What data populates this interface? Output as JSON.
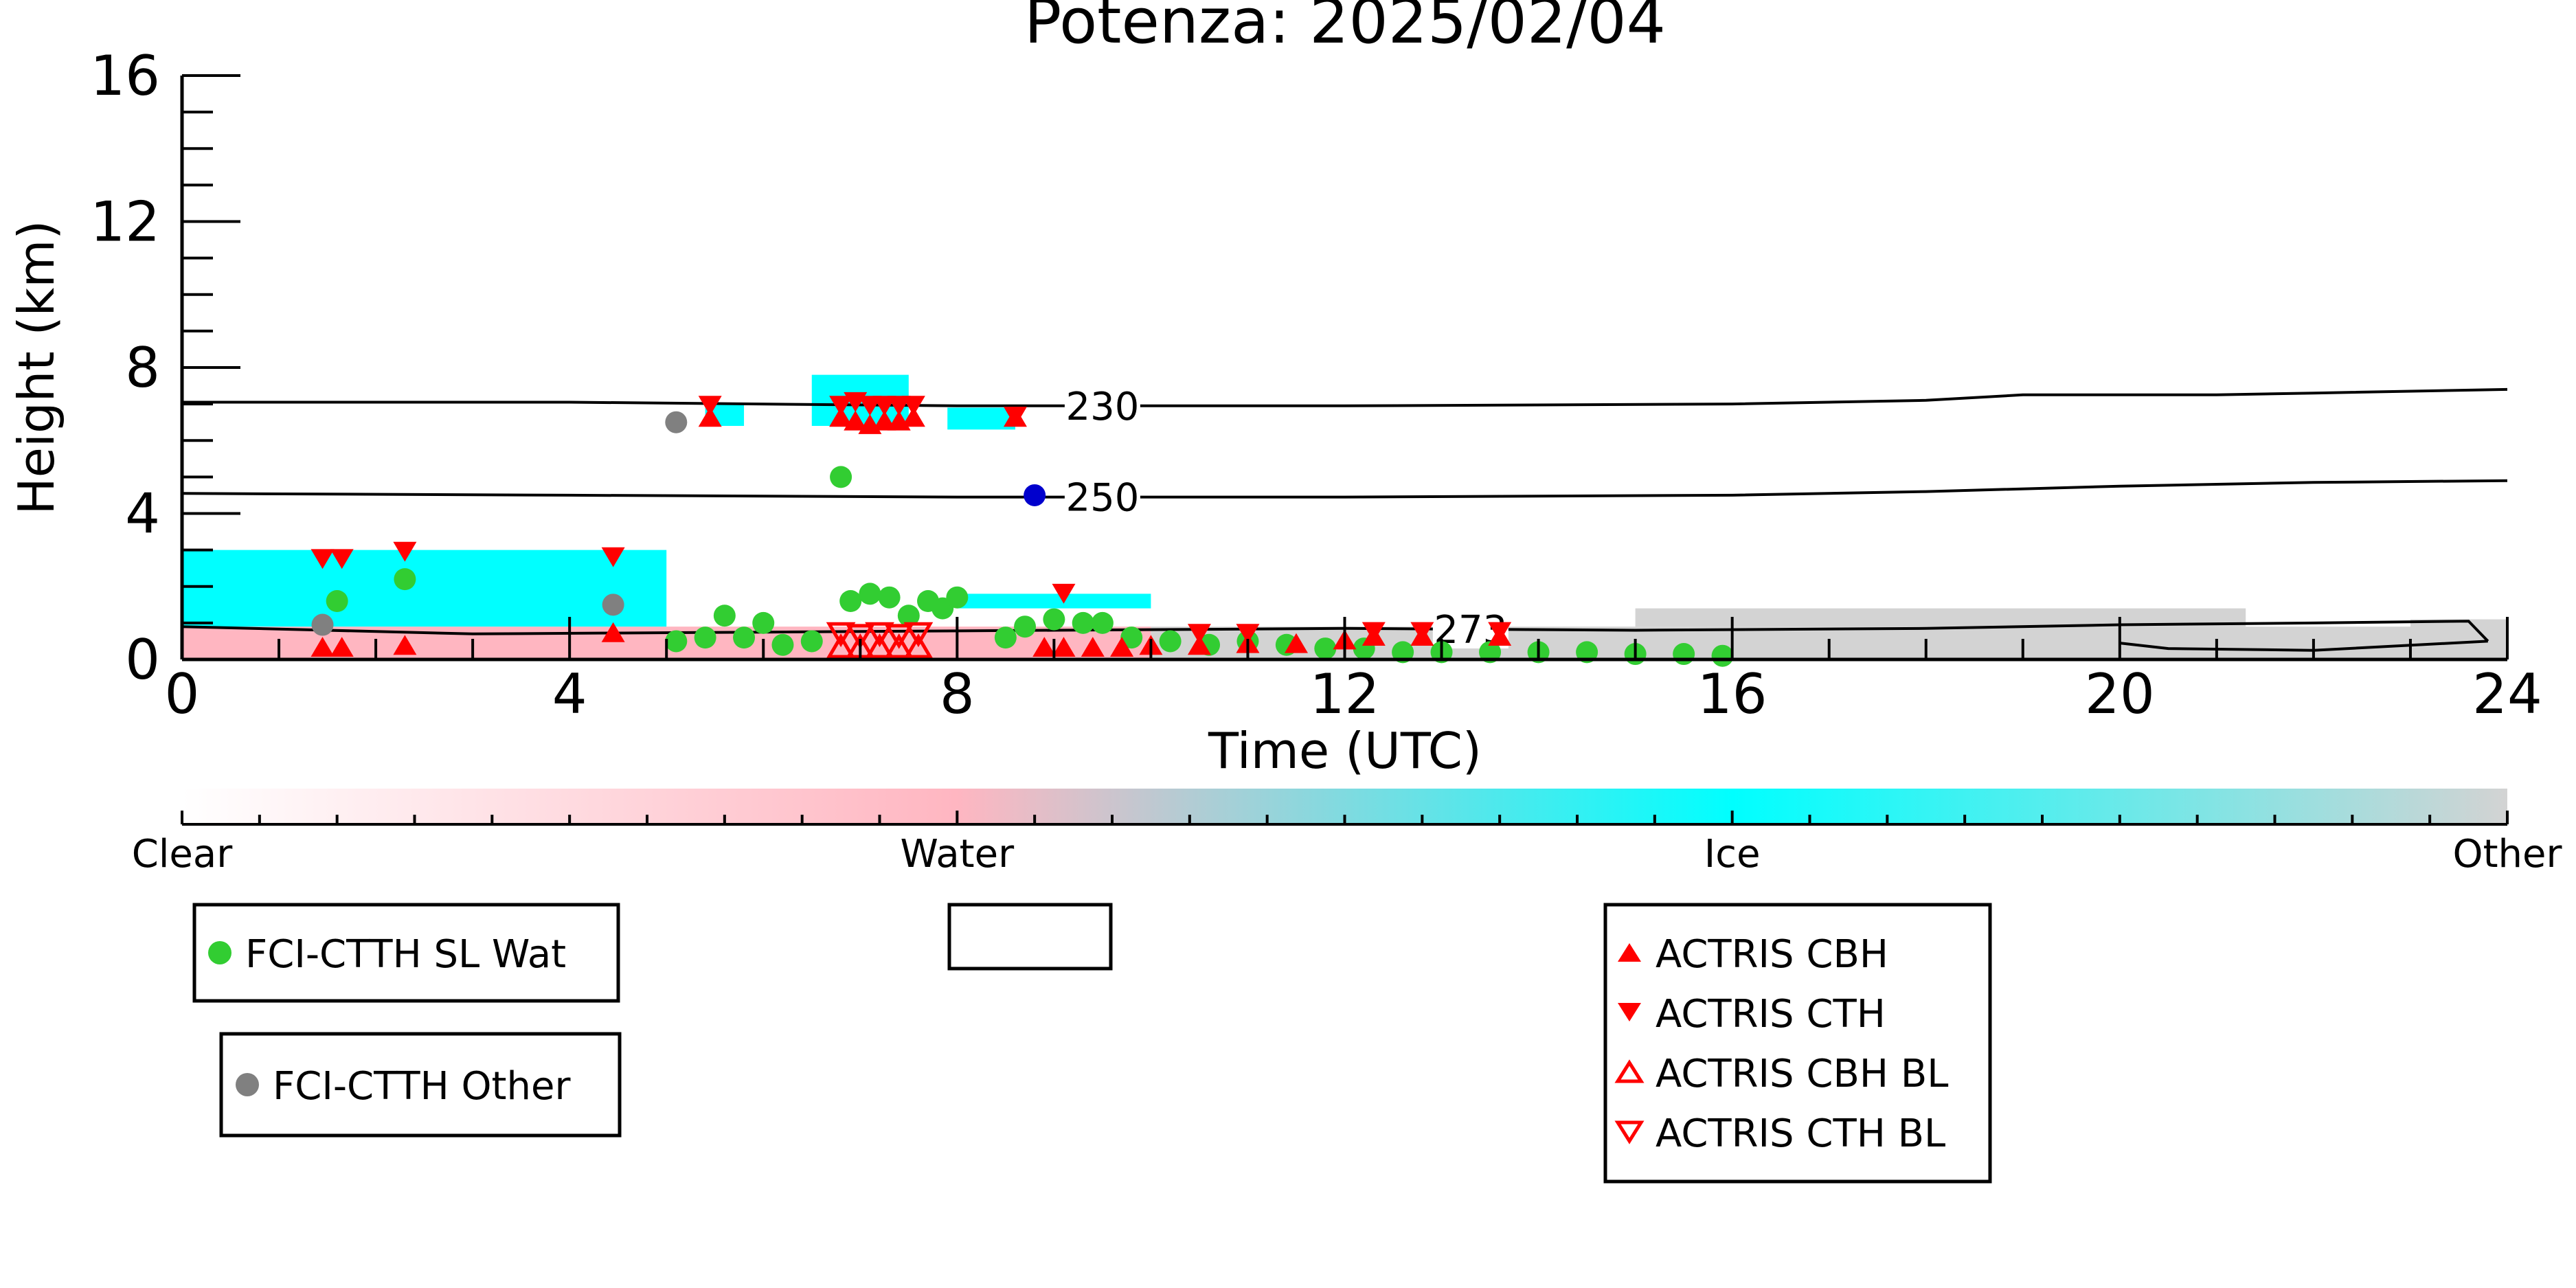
{
  "chart_data": {
    "type": "scatter",
    "title": "Potenza: 2025/02/04",
    "xlabel": "Time (UTC)",
    "ylabel": "Height (km)",
    "xlim": [
      0,
      24
    ],
    "ylim": [
      0,
      16
    ],
    "x_ticks": [
      "0",
      "4",
      "8",
      "12",
      "16",
      "20",
      "24"
    ],
    "y_ticks": [
      "0",
      "4",
      "8",
      "12",
      "16"
    ],
    "colorbar": {
      "labels": [
        "Clear",
        "Water",
        "Ice",
        "Other"
      ],
      "colors": [
        "#ffffff",
        "#ffb6c1",
        "#00ffff",
        "#d3d3d3"
      ]
    },
    "cloud_type_background": {
      "ice": [
        {
          "x0": 0.0,
          "x1": 5.0,
          "y0": 0.9,
          "y1": 3.0
        },
        {
          "x0": 5.4,
          "x1": 5.8,
          "y0": 6.4,
          "y1": 7.0
        },
        {
          "x0": 6.5,
          "x1": 7.5,
          "y0": 6.4,
          "y1": 7.8
        },
        {
          "x0": 7.9,
          "x1": 8.6,
          "y0": 6.3,
          "y1": 6.9
        },
        {
          "x0": 8.0,
          "x1": 10.0,
          "y0": 1.4,
          "y1": 1.8
        }
      ],
      "water": [
        {
          "x0": 0.0,
          "x1": 10.0,
          "y0": 0.0,
          "y1": 0.9
        },
        {
          "x0": 20.0,
          "x1": 23.8,
          "y0": 0.4,
          "y1": 0.7
        }
      ],
      "other": [
        {
          "x0": 10.0,
          "x1": 24.0,
          "y0": 0.0,
          "y1": 0.9
        },
        {
          "x0": 15.0,
          "x1": 21.3,
          "y0": 0.9,
          "y1": 1.4
        },
        {
          "x0": 23.0,
          "x1": 24.0,
          "y0": 0.6,
          "y1": 1.1
        }
      ]
    },
    "contours": [
      {
        "label": "230",
        "label_x": 9.5,
        "x": [
          0,
          4,
          8,
          10,
          12,
          16,
          18,
          19,
          21,
          22,
          24
        ],
        "y": [
          7.05,
          7.05,
          6.95,
          6.95,
          6.95,
          7.0,
          7.1,
          7.25,
          7.25,
          7.3,
          7.4
        ]
      },
      {
        "label": "250",
        "label_x": 9.5,
        "x": [
          0,
          4,
          8,
          12,
          16,
          18,
          20,
          22,
          24
        ],
        "y": [
          4.55,
          4.5,
          4.45,
          4.45,
          4.5,
          4.6,
          4.75,
          4.85,
          4.9
        ]
      },
      {
        "label": "273",
        "label_x": 13.3,
        "x": [
          0,
          3,
          6,
          9,
          12,
          15,
          18,
          20,
          22,
          23.6,
          23.8
        ],
        "y": [
          0.9,
          0.7,
          0.75,
          0.8,
          0.85,
          0.8,
          0.85,
          0.95,
          1.0,
          1.05,
          0.5
        ]
      },
      {
        "label": "",
        "label_x": null,
        "x": [
          20.0,
          20.5,
          22.0,
          23.8
        ],
        "y": [
          0.45,
          0.3,
          0.25,
          0.5
        ]
      }
    ],
    "series": [
      {
        "name": "FCI-CTTH SL Wat",
        "marker": "circle",
        "color": "#32cd32",
        "x": [
          1.6,
          2.3,
          5.1,
          5.4,
          5.6,
          5.8,
          6.0,
          6.2,
          6.5,
          6.8,
          6.9,
          7.1,
          7.3,
          7.5,
          7.7,
          7.85,
          8.0,
          8.5,
          8.7,
          9.0,
          9.3,
          9.5,
          9.8,
          10.2,
          10.6,
          11.0,
          11.4,
          11.8,
          12.2,
          12.6,
          13.0,
          13.5,
          14.0,
          14.5,
          15.0,
          15.5,
          15.9
        ],
        "y": [
          1.6,
          2.2,
          0.5,
          0.6,
          1.2,
          0.6,
          1.0,
          0.4,
          0.5,
          5.0,
          1.6,
          1.8,
          1.7,
          1.2,
          1.6,
          1.4,
          1.7,
          0.6,
          0.9,
          1.1,
          1.0,
          1.0,
          0.6,
          0.5,
          0.4,
          0.5,
          0.4,
          0.3,
          0.3,
          0.2,
          0.2,
          0.2,
          0.2,
          0.2,
          0.15,
          0.15,
          0.1
        ]
      },
      {
        "name": "FCI-CTTH Other",
        "marker": "circle",
        "color": "#808080",
        "x": [
          1.45,
          4.45,
          5.1
        ],
        "y": [
          0.95,
          1.5,
          6.5
        ]
      },
      {
        "name": "",
        "marker": "circle",
        "color": "#0000cd",
        "x": [
          8.8
        ],
        "y": [
          4.5
        ]
      },
      {
        "name": "ACTRIS CBH",
        "marker": "triangle-up",
        "color": "#ff0000",
        "x": [
          1.45,
          1.65,
          2.3,
          4.45,
          5.45,
          6.8,
          6.95,
          7.1,
          7.25,
          7.4,
          7.55,
          8.6,
          8.9,
          9.1,
          9.4,
          9.7,
          10.0,
          10.5,
          11.0,
          11.5,
          12.0,
          12.3,
          12.8,
          13.6
        ],
        "y": [
          0.3,
          0.3,
          0.35,
          0.7,
          6.6,
          6.6,
          6.5,
          6.4,
          6.5,
          6.5,
          6.6,
          6.6,
          0.3,
          0.3,
          0.3,
          0.3,
          0.35,
          0.35,
          0.4,
          0.4,
          0.5,
          0.6,
          0.6,
          0.6
        ]
      },
      {
        "name": "ACTRIS CTH",
        "marker": "triangle-down",
        "color": "#ff0000",
        "x": [
          1.45,
          1.65,
          2.3,
          4.45,
          5.45,
          6.8,
          6.95,
          7.1,
          7.25,
          7.4,
          7.55,
          8.6,
          9.1,
          10.5,
          11.0,
          12.3,
          12.8,
          13.6
        ],
        "y": [
          2.8,
          2.8,
          3.0,
          2.85,
          7.0,
          7.0,
          7.1,
          7.0,
          7.0,
          7.0,
          7.0,
          6.7,
          1.85,
          0.75,
          0.75,
          0.8,
          0.8,
          0.8
        ]
      },
      {
        "name": "ACTRIS CBH BL",
        "marker": "triangle-up-open",
        "color": "#ff0000",
        "x": [
          6.8,
          7.0,
          7.2,
          7.4,
          7.6
        ],
        "y": [
          0.3,
          0.3,
          0.3,
          0.3,
          0.3
        ]
      },
      {
        "name": "ACTRIS CTH BL",
        "marker": "triangle-down-open",
        "color": "#ff0000",
        "x": [
          6.8,
          7.0,
          7.2,
          7.4,
          7.6
        ],
        "y": [
          0.75,
          0.7,
          0.75,
          0.7,
          0.75
        ]
      }
    ],
    "legends": [
      {
        "entries": [
          "FCI-CTTH SL Wat"
        ]
      },
      {
        "entries": [
          "FCI-CTTH Other"
        ]
      },
      {
        "entries": []
      },
      {
        "entries": [
          "ACTRIS CBH",
          "ACTRIS CTH",
          "ACTRIS CBH BL",
          "ACTRIS CTH BL"
        ]
      }
    ]
  }
}
